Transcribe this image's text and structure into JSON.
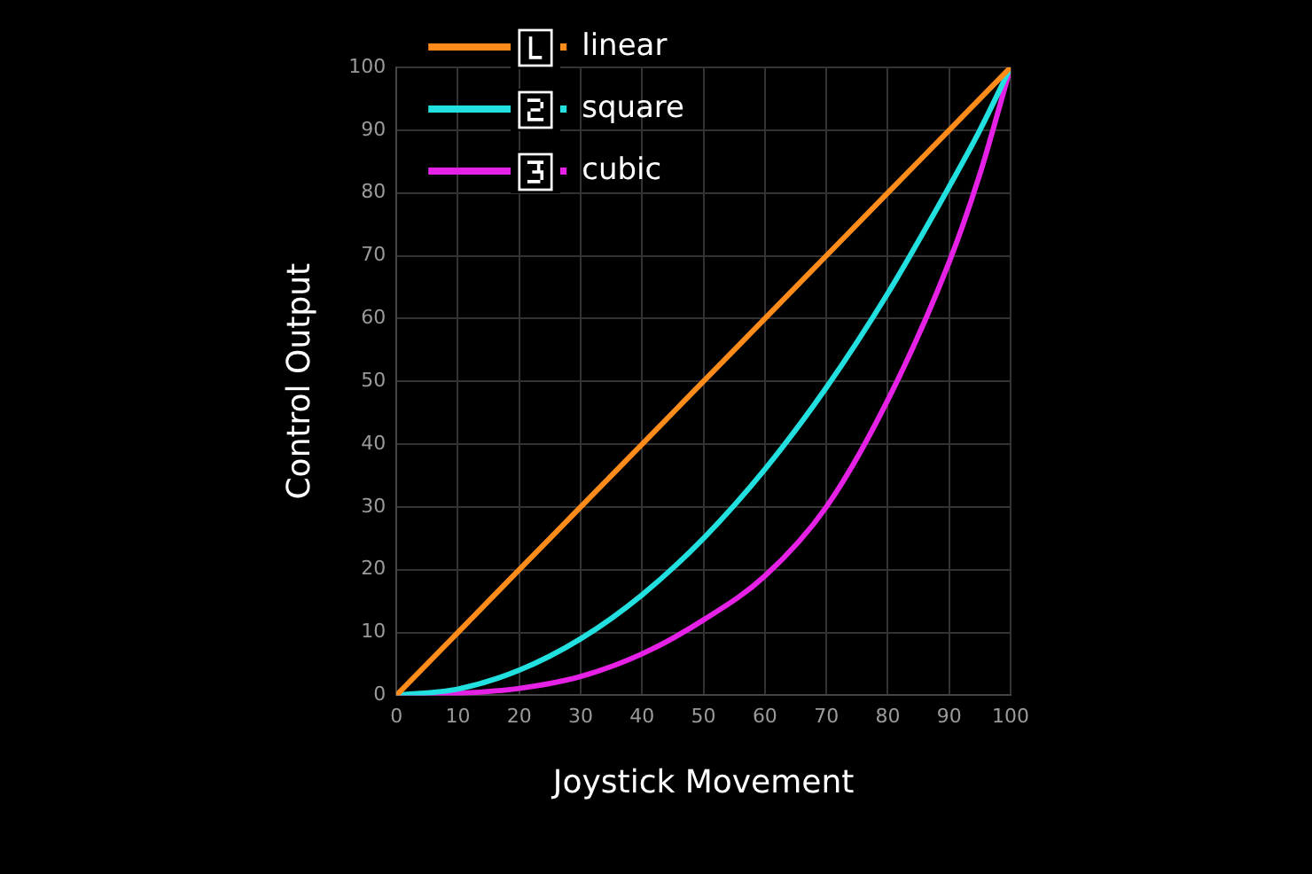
{
  "chart_data": {
    "type": "line",
    "xlabel": "Joystick Movement",
    "ylabel": "Control Output",
    "x": [
      0,
      10,
      20,
      30,
      40,
      50,
      60,
      70,
      80,
      90,
      95,
      100
    ],
    "series": [
      {
        "name": "linear",
        "color": "#ff8c1a",
        "values": [
          0,
          10,
          20,
          30,
          40,
          50,
          60,
          70,
          80,
          90,
          95,
          100
        ]
      },
      {
        "name": "square",
        "color": "#22e0e0",
        "values": [
          0,
          1,
          4,
          9,
          16,
          25,
          36,
          49,
          64,
          81,
          90,
          100
        ]
      },
      {
        "name": "cubic",
        "color": "#e621e6",
        "values": [
          0,
          0.3,
          1.1,
          3,
          6.6,
          12,
          19,
          30,
          47,
          69,
          83,
          100
        ]
      }
    ],
    "xlim": [
      0,
      100
    ],
    "ylim": [
      0,
      100
    ],
    "xticks": [
      0,
      10,
      20,
      30,
      40,
      50,
      60,
      70,
      80,
      90,
      100
    ],
    "yticks": [
      0,
      10,
      20,
      30,
      40,
      50,
      60,
      70,
      80,
      90,
      100
    ],
    "grid": true,
    "legend": "top left",
    "marker": "none",
    "line_style": "solid"
  }
}
